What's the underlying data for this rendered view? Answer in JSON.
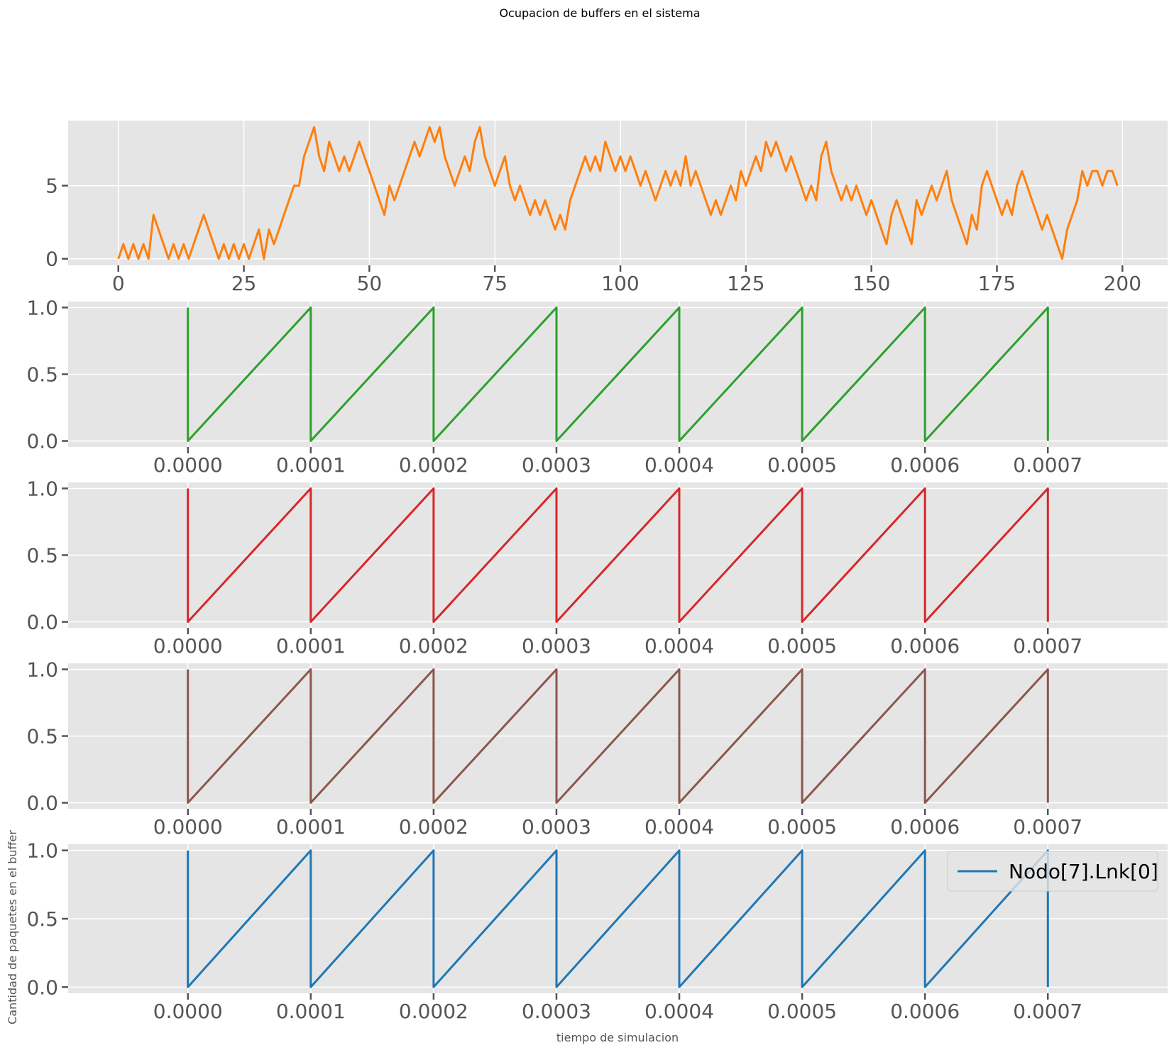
{
  "chart_data": {
    "suptitle": "Ocupacion de buffers en el sistema",
    "xlabel": "tiempo de simulacion",
    "ylabel": "Cantidad de paquetes en el buffer",
    "grid": true,
    "panels": [
      {
        "type": "line",
        "color": "#ff7f0e",
        "xlim": [
          -10,
          209
        ],
        "ylim": [
          -0.45,
          9.45
        ],
        "xticks": [
          0,
          25,
          50,
          75,
          100,
          125,
          150,
          175,
          200
        ],
        "xtick_labels": [
          "0",
          "25",
          "50",
          "75",
          "100",
          "125",
          "150",
          "175",
          "200"
        ],
        "yticks": [
          0,
          5
        ],
        "ytick_labels": [
          "0",
          "5"
        ],
        "series": [
          {
            "x": [
              0,
              1,
              2,
              3,
              4,
              5,
              6,
              7,
              8,
              9,
              10,
              11,
              12,
              13,
              14,
              15,
              16,
              17,
              18,
              19,
              20,
              21,
              22,
              23,
              24,
              25,
              26,
              27,
              28,
              29,
              30,
              31,
              32,
              33,
              34,
              35,
              36,
              37,
              38,
              39,
              40,
              41,
              42,
              43,
              44,
              45,
              46,
              47,
              48,
              49,
              50,
              51,
              52,
              53,
              54,
              55,
              56,
              57,
              58,
              59,
              60,
              61,
              62,
              63,
              64,
              65,
              66,
              67,
              68,
              69,
              70,
              71,
              72,
              73,
              74,
              75,
              76,
              77,
              78,
              79,
              80,
              81,
              82,
              83,
              84,
              85,
              86,
              87,
              88,
              89,
              90,
              91,
              92,
              93,
              94,
              95,
              96,
              97,
              98,
              99,
              100,
              101,
              102,
              103,
              104,
              105,
              106,
              107,
              108,
              109,
              110,
              111,
              112,
              113,
              114,
              115,
              116,
              117,
              118,
              119,
              120,
              121,
              122,
              123,
              124,
              125,
              126,
              127,
              128,
              129,
              130,
              131,
              132,
              133,
              134,
              135,
              136,
              137,
              138,
              139,
              140,
              141,
              142,
              143,
              144,
              145,
              146,
              147,
              148,
              149,
              150,
              151,
              152,
              153,
              154,
              155,
              156,
              157,
              158,
              159,
              160,
              161,
              162,
              163,
              164,
              165,
              166,
              167,
              168,
              169,
              170,
              171,
              172,
              173,
              174,
              175,
              176,
              177,
              178,
              179,
              180,
              181,
              182,
              183,
              184,
              185,
              186,
              187,
              188,
              189,
              190,
              191,
              192,
              193,
              194,
              195,
              196,
              197,
              198,
              199
            ],
            "y": [
              0,
              1,
              0,
              1,
              0,
              1,
              0,
              3,
              2,
              1,
              0,
              1,
              0,
              1,
              0,
              1,
              2,
              3,
              2,
              1,
              0,
              1,
              0,
              1,
              0,
              1,
              0,
              1,
              2,
              0,
              2,
              1,
              2,
              3,
              4,
              5,
              5,
              7,
              8,
              9,
              7,
              6,
              8,
              7,
              6,
              7,
              6,
              7,
              8,
              7,
              6,
              5,
              4,
              3,
              5,
              4,
              5,
              6,
              7,
              8,
              7,
              8,
              9,
              8,
              9,
              7,
              6,
              5,
              6,
              7,
              6,
              8,
              9,
              7,
              6,
              5,
              6,
              7,
              5,
              4,
              5,
              4,
              3,
              4,
              3,
              4,
              3,
              2,
              3,
              2,
              4,
              5,
              6,
              7,
              6,
              7,
              6,
              8,
              7,
              6,
              7,
              6,
              7,
              6,
              5,
              6,
              5,
              4,
              5,
              6,
              5,
              6,
              5,
              7,
              5,
              6,
              5,
              4,
              3,
              4,
              3,
              4,
              5,
              4,
              6,
              5,
              6,
              7,
              6,
              8,
              7,
              8,
              7,
              6,
              7,
              6,
              5,
              4,
              5,
              4,
              7,
              8,
              6,
              5,
              4,
              5,
              4,
              5,
              4,
              3,
              4,
              3,
              2,
              1,
              3,
              4,
              3,
              2,
              1,
              4,
              3,
              4,
              5,
              4,
              5,
              6,
              4,
              3,
              2,
              1,
              3,
              2,
              5,
              6,
              5,
              4,
              3,
              4,
              3,
              5,
              6,
              5,
              4,
              3,
              2,
              3,
              2,
              1,
              0,
              2,
              3,
              4,
              6,
              5,
              6,
              6,
              5,
              6,
              6,
              5
            ]
          }
        ]
      },
      {
        "type": "line",
        "color": "#2ca02c",
        "xlim": [
          -9.75e-05,
          0.0007975
        ],
        "ylim": [
          -0.045,
          1.045
        ],
        "xticks": [
          0,
          0.0001,
          0.0002,
          0.0003,
          0.0004,
          0.0005,
          0.0006,
          0.0007
        ],
        "xtick_labels": [
          "0.0000",
          "0.0001",
          "0.0002",
          "0.0003",
          "0.0004",
          "0.0005",
          "0.0006",
          "0.0007"
        ],
        "yticks": [
          0,
          0.5,
          1
        ],
        "ytick_labels": [
          "0.0",
          "0.5",
          "1.0"
        ],
        "series": [
          {
            "x": [
              0,
              0,
              0.0001,
              0.0001,
              0.0002,
              0.0002,
              0.0003,
              0.0003,
              0.0004,
              0.0004,
              0.0005,
              0.0005,
              0.0006,
              0.0006,
              0.0007,
              0.0007
            ],
            "y": [
              1,
              0,
              1,
              0,
              1,
              0,
              1,
              0,
              1,
              0,
              1,
              0,
              1,
              0,
              1,
              0
            ]
          }
        ]
      },
      {
        "type": "line",
        "color": "#d62728",
        "xlim": [
          -9.75e-05,
          0.0007975
        ],
        "ylim": [
          -0.045,
          1.045
        ],
        "xticks": [
          0,
          0.0001,
          0.0002,
          0.0003,
          0.0004,
          0.0005,
          0.0006,
          0.0007
        ],
        "xtick_labels": [
          "0.0000",
          "0.0001",
          "0.0002",
          "0.0003",
          "0.0004",
          "0.0005",
          "0.0006",
          "0.0007"
        ],
        "yticks": [
          0,
          0.5,
          1
        ],
        "ytick_labels": [
          "0.0",
          "0.5",
          "1.0"
        ],
        "series": [
          {
            "x": [
              0,
              0,
              0.0001,
              0.0001,
              0.0002,
              0.0002,
              0.0003,
              0.0003,
              0.0004,
              0.0004,
              0.0005,
              0.0005,
              0.0006,
              0.0006,
              0.0007,
              0.0007
            ],
            "y": [
              1,
              0,
              1,
              0,
              1,
              0,
              1,
              0,
              1,
              0,
              1,
              0,
              1,
              0,
              1,
              0
            ]
          }
        ]
      },
      {
        "type": "line",
        "color": "#8c564b",
        "xlim": [
          -9.75e-05,
          0.0007975
        ],
        "ylim": [
          -0.045,
          1.045
        ],
        "xticks": [
          0,
          0.0001,
          0.0002,
          0.0003,
          0.0004,
          0.0005,
          0.0006,
          0.0007
        ],
        "xtick_labels": [
          "0.0000",
          "0.0001",
          "0.0002",
          "0.0003",
          "0.0004",
          "0.0005",
          "0.0006",
          "0.0007"
        ],
        "yticks": [
          0,
          0.5,
          1
        ],
        "ytick_labels": [
          "0.0",
          "0.5",
          "1.0"
        ],
        "series": [
          {
            "x": [
              0,
              0,
              0.0001,
              0.0001,
              0.0002,
              0.0002,
              0.0003,
              0.0003,
              0.0004,
              0.0004,
              0.0005,
              0.0005,
              0.0006,
              0.0006,
              0.0007,
              0.0007
            ],
            "y": [
              1,
              0,
              1,
              0,
              1,
              0,
              1,
              0,
              1,
              0,
              1,
              0,
              1,
              0,
              1,
              0
            ]
          }
        ]
      },
      {
        "type": "line",
        "color": "#1f77b4",
        "xlim": [
          -9.75e-05,
          0.0007975
        ],
        "ylim": [
          -0.045,
          1.045
        ],
        "xticks": [
          0,
          0.0001,
          0.0002,
          0.0003,
          0.0004,
          0.0005,
          0.0006,
          0.0007
        ],
        "xtick_labels": [
          "0.0000",
          "0.0001",
          "0.0002",
          "0.0003",
          "0.0004",
          "0.0005",
          "0.0006",
          "0.0007"
        ],
        "yticks": [
          0,
          0.5,
          1
        ],
        "ytick_labels": [
          "0.0",
          "0.5",
          "1.0"
        ],
        "legend": "upper right",
        "series": [
          {
            "name": "Nodo[7].Lnk[0]",
            "x": [
              0,
              0,
              0.0001,
              0.0001,
              0.0002,
              0.0002,
              0.0003,
              0.0003,
              0.0004,
              0.0004,
              0.0005,
              0.0005,
              0.0006,
              0.0006,
              0.0007,
              0.0007
            ],
            "y": [
              1,
              0,
              1,
              0,
              1,
              0,
              1,
              0,
              1,
              0,
              1,
              0,
              1,
              0,
              1,
              0
            ]
          }
        ]
      }
    ]
  }
}
